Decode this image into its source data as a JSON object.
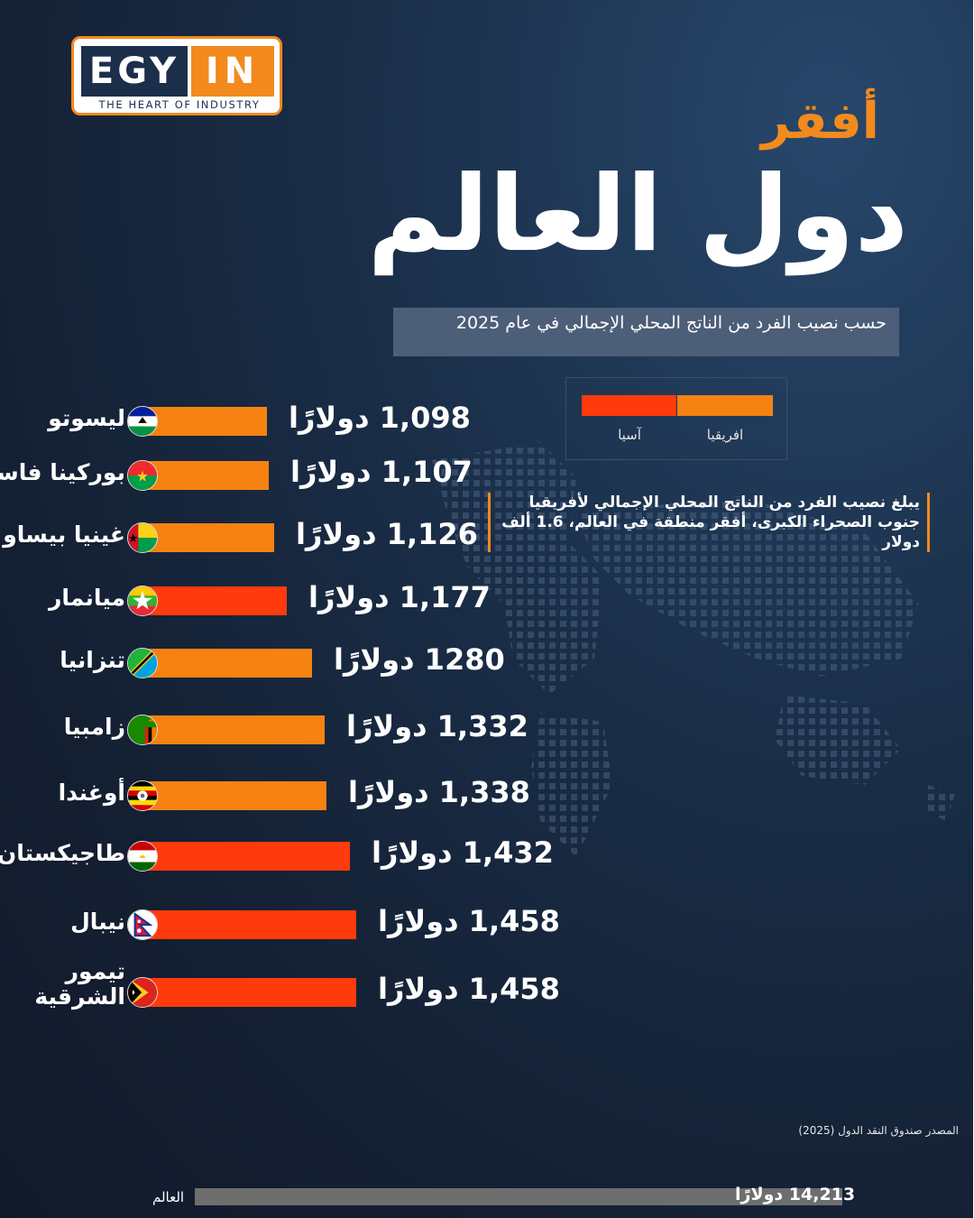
{
  "logo": {
    "left": "EGY",
    "right": "IN",
    "tagline": "THE HEART OF INDUSTRY"
  },
  "title": {
    "line1": "أفقر",
    "line2": "دول العالم"
  },
  "subtitle": "حسب نصيب الفرد من الناتج المحلي الإجمالي في عام 2025",
  "legend": {
    "africa": "افريقيا",
    "asia": "آسيا"
  },
  "note": "يبلغ نصيب الفرد من الناتج المحلي الإجمالي لأفريقيا جنوب الصحراء الكبرى، أفقر منطقة في العالم، 1.6 ألف دولار",
  "source": "المصدر صندوق النقد الدول (2025)",
  "world": {
    "label": "العالم",
    "value_text": "14,213 دولارًا",
    "value": 14213
  },
  "colors": {
    "africa": "#f68212",
    "asia": "#ff3a0c",
    "world": "#6e6e6e"
  },
  "currency": "دولارًا",
  "chart_data": {
    "type": "bar",
    "orientation": "horizontal",
    "title": "أفقر دول العالم",
    "subtitle": "حسب نصيب الفرد من الناتج المحلي الإجمالي في عام 2025",
    "categories": [
      "ليسوتو",
      "بوركينا فاسو",
      "غينيا بيساو",
      "ميانمار",
      "تنزانيا",
      "زامبيا",
      "أوغندا",
      "طاجيكستان",
      "نيبال",
      "تيمور الشرقية"
    ],
    "values": [
      1098,
      1107,
      1126,
      1177,
      1280,
      1332,
      1338,
      1432,
      1458,
      1458
    ],
    "value_labels": [
      "1,098",
      "1,107",
      "1,126",
      "1,177",
      "1280",
      "1,332",
      "1,338",
      "1,432",
      "1,458",
      "1,458"
    ],
    "regions": [
      "افريقيا",
      "افريقيا",
      "افريقيا",
      "آسيا",
      "افريقيا",
      "افريقيا",
      "افريقيا",
      "آسيا",
      "آسيا",
      "آسيا"
    ],
    "flags": [
      "lesotho-flag",
      "burkina-faso-flag",
      "guinea-bissau-flag",
      "myanmar-flag",
      "tanzania-flag",
      "zambia-flag",
      "uganda-flag",
      "tajikistan-flag",
      "nepal-flag",
      "east-timor-flag"
    ],
    "unit": "دولارًا",
    "legend": [
      "افريقيا",
      "آسيا"
    ],
    "reference": {
      "label": "العالم",
      "value": 14213
    }
  }
}
